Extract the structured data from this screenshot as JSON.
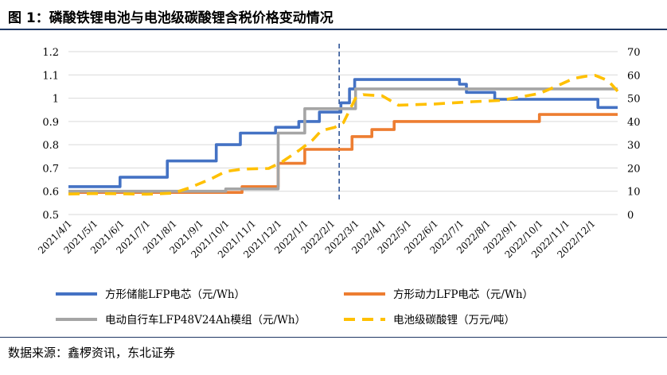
{
  "title": "图  1：磷酸铁锂电池与电池级碳酸锂含税价格变动情况",
  "source": "数据来源：鑫椤资讯，东北证券",
  "chart_data": {
    "type": "line",
    "x_labels": [
      "2021/4/1",
      "2021/5/1",
      "2021/6/1",
      "2021/7/1",
      "2021/8/1",
      "2021/9/1",
      "2021/10/1",
      "2021/11/1",
      "2021/12/1",
      "2022/1/1",
      "2022/2/1",
      "2022/3/1",
      "2022/4/1",
      "2022/5/1",
      "2022/6/1",
      "2022/7/1",
      "2022/8/1",
      "2022/9/1",
      "2022/10/1",
      "2022/11/1",
      "2022/12/1"
    ],
    "x_range": [
      "2021-04-01",
      "2022-12-31"
    ],
    "y_left": {
      "min": 0.5,
      "max": 1.2,
      "ticks": [
        "0.5",
        "0.6",
        "0.7",
        "0.8",
        "0.9",
        "1",
        "1.1",
        "1.2"
      ]
    },
    "y_right": {
      "min": 0,
      "max": 70,
      "ticks": [
        "0",
        "10",
        "20",
        "30",
        "40",
        "50",
        "60",
        "70"
      ]
    },
    "vline_date": "2022-02-10",
    "series": [
      {
        "name": "方形储能LFP电芯（元/Wh）",
        "color": "#4472c4",
        "axis": "left",
        "style": "solid",
        "points": [
          [
            "2021-04-01",
            0.62
          ],
          [
            "2021-05-31",
            0.62
          ],
          [
            "2021-05-31",
            0.66
          ],
          [
            "2021-07-25",
            0.66
          ],
          [
            "2021-07-25",
            0.73
          ],
          [
            "2021-09-20",
            0.73
          ],
          [
            "2021-09-20",
            0.8
          ],
          [
            "2021-10-18",
            0.8
          ],
          [
            "2021-10-18",
            0.85
          ],
          [
            "2021-11-28",
            0.85
          ],
          [
            "2021-11-28",
            0.875
          ],
          [
            "2021-12-25",
            0.875
          ],
          [
            "2021-12-25",
            0.9
          ],
          [
            "2022-01-18",
            0.9
          ],
          [
            "2022-01-18",
            0.94
          ],
          [
            "2022-02-12",
            0.94
          ],
          [
            "2022-02-12",
            0.98
          ],
          [
            "2022-02-22",
            0.98
          ],
          [
            "2022-02-22",
            1.04
          ],
          [
            "2022-02-28",
            1.04
          ],
          [
            "2022-02-28",
            1.08
          ],
          [
            "2022-06-30",
            1.08
          ],
          [
            "2022-06-30",
            1.06
          ],
          [
            "2022-07-08",
            1.06
          ],
          [
            "2022-07-08",
            1.025
          ],
          [
            "2022-08-10",
            1.025
          ],
          [
            "2022-08-10",
            0.995
          ],
          [
            "2022-12-08",
            0.995
          ],
          [
            "2022-12-08",
            0.96
          ],
          [
            "2022-12-31",
            0.96
          ]
        ]
      },
      {
        "name": "方形动力LFP电芯（元/Wh）",
        "color": "#ed7d31",
        "axis": "left",
        "style": "solid",
        "points": [
          [
            "2021-04-01",
            0.595
          ],
          [
            "2021-10-20",
            0.595
          ],
          [
            "2021-10-20",
            0.62
          ],
          [
            "2021-12-01",
            0.62
          ],
          [
            "2021-12-01",
            0.72
          ],
          [
            "2022-01-01",
            0.72
          ],
          [
            "2022-01-01",
            0.78
          ],
          [
            "2022-02-25",
            0.78
          ],
          [
            "2022-02-25",
            0.835
          ],
          [
            "2022-03-20",
            0.835
          ],
          [
            "2022-03-20",
            0.865
          ],
          [
            "2022-04-15",
            0.865
          ],
          [
            "2022-04-15",
            0.9
          ],
          [
            "2022-10-01",
            0.9
          ],
          [
            "2022-10-01",
            0.93
          ],
          [
            "2022-12-31",
            0.93
          ]
        ]
      },
      {
        "name": "电动自行车LFP48V24Ah模组（元/Wh）",
        "color": "#a5a5a5",
        "axis": "left",
        "style": "solid",
        "points": [
          [
            "2021-04-01",
            0.6
          ],
          [
            "2021-10-01",
            0.6
          ],
          [
            "2021-10-01",
            0.61
          ],
          [
            "2021-12-01",
            0.61
          ],
          [
            "2021-12-01",
            0.85
          ],
          [
            "2022-01-01",
            0.85
          ],
          [
            "2022-01-01",
            0.955
          ],
          [
            "2022-03-01",
            0.955
          ],
          [
            "2022-03-01",
            1.04
          ],
          [
            "2022-12-31",
            1.04
          ]
        ]
      },
      {
        "name": "电池级碳酸锂（万元/吨）",
        "color": "#ffc000",
        "axis": "right",
        "style": "dashed",
        "points": [
          [
            "2021-04-01",
            8.8
          ],
          [
            "2021-05-01",
            9.0
          ],
          [
            "2021-06-01",
            8.9
          ],
          [
            "2021-07-01",
            8.7
          ],
          [
            "2021-08-01",
            9.2
          ],
          [
            "2021-08-20",
            11.5
          ],
          [
            "2021-09-15",
            15.5
          ],
          [
            "2021-10-01",
            18.5
          ],
          [
            "2021-10-20",
            19.5
          ],
          [
            "2021-11-20",
            19.8
          ],
          [
            "2021-12-05",
            22.5
          ],
          [
            "2021-12-25",
            27.5
          ],
          [
            "2022-01-10",
            32
          ],
          [
            "2022-01-20",
            36
          ],
          [
            "2022-02-05",
            37.5
          ],
          [
            "2022-02-15",
            39.5
          ],
          [
            "2022-03-01",
            50
          ],
          [
            "2022-03-10",
            51.5
          ],
          [
            "2022-04-01",
            51
          ],
          [
            "2022-04-20",
            47
          ],
          [
            "2022-06-01",
            47.5
          ],
          [
            "2022-07-15",
            48.5
          ],
          [
            "2022-08-15",
            49
          ],
          [
            "2022-09-01",
            50
          ],
          [
            "2022-10-01",
            52
          ],
          [
            "2022-10-20",
            55
          ],
          [
            "2022-11-10",
            58.5
          ],
          [
            "2022-11-25",
            59.5
          ],
          [
            "2022-12-05",
            59.8
          ],
          [
            "2022-12-20",
            57.5
          ],
          [
            "2022-12-31",
            53
          ]
        ]
      }
    ]
  },
  "legend": {
    "items": [
      {
        "label": "方形储能LFP电芯（元/Wh）",
        "color": "#4472c4",
        "style": "solid"
      },
      {
        "label": "方形动力LFP电芯（元/Wh）",
        "color": "#ed7d31",
        "style": "solid"
      },
      {
        "label": "电动自行车LFP48V24Ah模组（元/Wh）",
        "color": "#a5a5a5",
        "style": "solid"
      },
      {
        "label": "电池级碳酸锂（万元/吨）",
        "color": "#ffc000",
        "style": "dashed"
      }
    ]
  }
}
